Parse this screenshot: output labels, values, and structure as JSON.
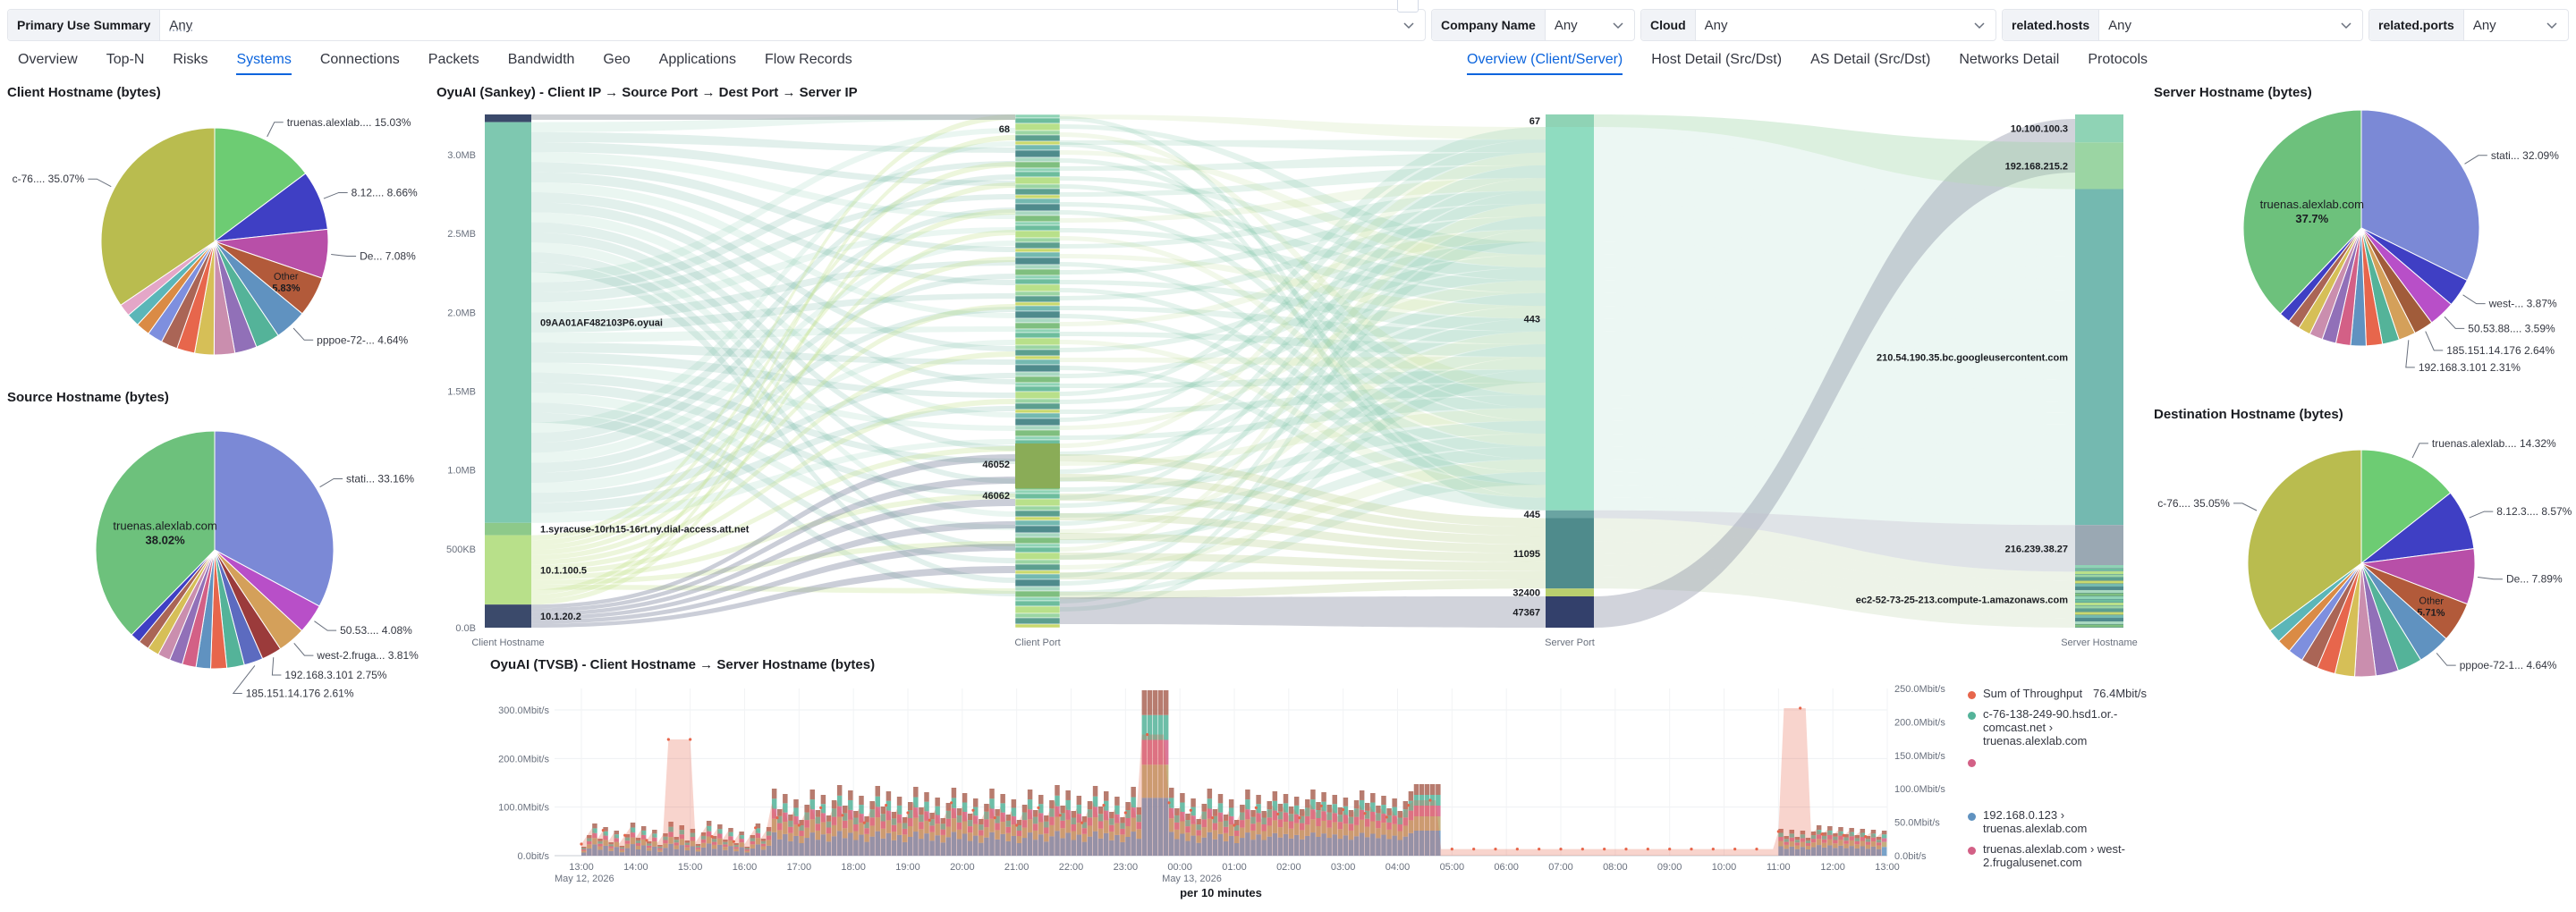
{
  "filters": {
    "primary": {
      "label": "Primary Use Summary",
      "value": "Any"
    },
    "company": {
      "label": "Company Name",
      "value": "Any"
    },
    "cloud": {
      "label": "Cloud",
      "value": "Any"
    },
    "hosts": {
      "label": "related.hosts",
      "value": "Any"
    },
    "ports": {
      "label": "related.ports",
      "value": "Any"
    }
  },
  "nav": {
    "tabs": [
      "Overview",
      "Top-N",
      "Risks",
      "Systems",
      "Connections",
      "Packets",
      "Bandwidth",
      "Geo",
      "Applications",
      "Flow Records"
    ],
    "active": "Systems",
    "subtabs": [
      "Overview (Client/Server)",
      "Host Detail (Src/Dst)",
      "AS Detail (Src/Dst)",
      "Networks Detail",
      "Protocols"
    ],
    "active_sub": "Overview (Client/Server)"
  },
  "panels": {
    "client_hostname": "Client Hostname (bytes)",
    "source_hostname": "Source Hostname (bytes)",
    "server_hostname": "Server Hostname (bytes)",
    "destination_hostname": "Destination Hostname (bytes)",
    "sankey": "OyuAI (Sankey) - Client IP → Source Port → Dest Port → Server IP",
    "tvsb": "OyuAI (TVSB) - Client Hostname → Server Hostname (bytes)"
  },
  "pies": {
    "client": {
      "slices": [
        {
          "label": "truenas.alexlab....",
          "pct": "15.03%",
          "value": 15.03,
          "color": "#6dcc73"
        },
        {
          "label": "8.12....",
          "pct": "8.66%",
          "value": 8.66,
          "color": "#3f3fc4"
        },
        {
          "label": "De...",
          "pct": "7.08%",
          "value": 7.08,
          "color": "#b84fa8"
        },
        {
          "label": "Other",
          "pct": "5.83%",
          "value": 5.83,
          "color": "#b25a3a"
        },
        {
          "label": "pppoe-72-...",
          "pct": "4.64%",
          "value": 4.64,
          "color": "#6092c0"
        },
        {
          "label": "",
          "pct": "",
          "value": 3.5,
          "color": "#54b399"
        },
        {
          "label": "",
          "pct": "",
          "value": 3.2,
          "color": "#9170b8"
        },
        {
          "label": "",
          "pct": "",
          "value": 3.0,
          "color": "#ca8eae"
        },
        {
          "label": "",
          "pct": "",
          "value": 2.8,
          "color": "#d6bf57"
        },
        {
          "label": "",
          "pct": "",
          "value": 2.6,
          "color": "#e7664c"
        },
        {
          "label": "",
          "pct": "",
          "value": 2.4,
          "color": "#aa6556"
        },
        {
          "label": "",
          "pct": "",
          "value": 2.2,
          "color": "#7e8fde"
        },
        {
          "label": "",
          "pct": "",
          "value": 2.0,
          "color": "#da8b45"
        },
        {
          "label": "",
          "pct": "",
          "value": 1.9,
          "color": "#5bb6b8"
        },
        {
          "label": "",
          "pct": "",
          "value": 1.8,
          "color": "#e4a6c7"
        },
        {
          "label": "c-76....",
          "pct": "35.07%",
          "value": 35.07,
          "color": "#b9bc4f"
        }
      ]
    },
    "source": {
      "slices": [
        {
          "label": "stati...",
          "pct": "33.16%",
          "value": 33.16,
          "color": "#7b89d6"
        },
        {
          "label": "50.53....",
          "pct": "4.08%",
          "value": 4.08,
          "color": "#b84fc8"
        },
        {
          "label": "west-2.fruga...",
          "pct": "3.81%",
          "value": 3.81,
          "color": "#d4a05a"
        },
        {
          "label": "192.168.3.101",
          "pct": "2.75%",
          "value": 2.75,
          "color": "#9b3b3b"
        },
        {
          "label": "185.151.14.176",
          "pct": "2.61%",
          "value": 2.61,
          "color": "#5c6bc0"
        },
        {
          "label": "",
          "pct": "",
          "value": 2.4,
          "color": "#54b399"
        },
        {
          "label": "",
          "pct": "",
          "value": 2.2,
          "color": "#e7664c"
        },
        {
          "label": "",
          "pct": "",
          "value": 2.0,
          "color": "#6092c0"
        },
        {
          "label": "",
          "pct": "",
          "value": 1.9,
          "color": "#d36086"
        },
        {
          "label": "",
          "pct": "",
          "value": 1.8,
          "color": "#9170b8"
        },
        {
          "label": "",
          "pct": "",
          "value": 1.7,
          "color": "#ca8eae"
        },
        {
          "label": "",
          "pct": "",
          "value": 1.6,
          "color": "#d6bf57"
        },
        {
          "label": "",
          "pct": "",
          "value": 1.5,
          "color": "#aa6556"
        },
        {
          "label": "",
          "pct": "",
          "value": 1.4,
          "color": "#3f3fc4"
        },
        {
          "label": "truenas.alexlab.com",
          "pct": "38.02%",
          "value": 38.02,
          "color": "#6dc17c"
        }
      ]
    },
    "server": {
      "slices": [
        {
          "label": "stati...",
          "pct": "32.09%",
          "value": 32.09,
          "color": "#7b89d6"
        },
        {
          "label": "west-...",
          "pct": "3.87%",
          "value": 3.87,
          "color": "#3f3fc4"
        },
        {
          "label": "50.53.88....",
          "pct": "3.59%",
          "value": 3.59,
          "color": "#b84fc8"
        },
        {
          "label": "185.151.14.176",
          "pct": "2.64%",
          "value": 2.64,
          "color": "#a15c3a"
        },
        {
          "label": "192.168.3.101",
          "pct": "2.31%",
          "value": 2.31,
          "color": "#d4a05a"
        },
        {
          "label": "",
          "pct": "",
          "value": 2.3,
          "color": "#54b399"
        },
        {
          "label": "",
          "pct": "",
          "value": 2.2,
          "color": "#e7664c"
        },
        {
          "label": "",
          "pct": "",
          "value": 2.1,
          "color": "#6092c0"
        },
        {
          "label": "",
          "pct": "",
          "value": 2.0,
          "color": "#d36086"
        },
        {
          "label": "",
          "pct": "",
          "value": 1.9,
          "color": "#9170b8"
        },
        {
          "label": "",
          "pct": "",
          "value": 1.8,
          "color": "#ca8eae"
        },
        {
          "label": "",
          "pct": "",
          "value": 1.7,
          "color": "#d6bf57"
        },
        {
          "label": "",
          "pct": "",
          "value": 1.6,
          "color": "#aa6556"
        },
        {
          "label": "",
          "pct": "",
          "value": 1.5,
          "color": "#3f3fc4"
        },
        {
          "label": "truenas.alexlab.com",
          "pct": "37.7%",
          "value": 37.7,
          "color": "#6dc17c"
        }
      ]
    },
    "destination": {
      "slices": [
        {
          "label": "truenas.alexlab....",
          "pct": "14.32%",
          "value": 14.32,
          "color": "#6dcc73"
        },
        {
          "label": "8.12.3....",
          "pct": "8.57%",
          "value": 8.57,
          "color": "#3f3fc4"
        },
        {
          "label": "De...",
          "pct": "7.89%",
          "value": 7.89,
          "color": "#b84fa8"
        },
        {
          "label": "Other",
          "pct": "5.71%",
          "value": 5.71,
          "color": "#b25a3a"
        },
        {
          "label": "pppoe-72-1...",
          "pct": "4.64%",
          "value": 4.64,
          "color": "#6092c0"
        },
        {
          "label": "",
          "pct": "",
          "value": 3.5,
          "color": "#54b399"
        },
        {
          "label": "",
          "pct": "",
          "value": 3.2,
          "color": "#9170b8"
        },
        {
          "label": "",
          "pct": "",
          "value": 3.0,
          "color": "#ca8eae"
        },
        {
          "label": "",
          "pct": "",
          "value": 2.8,
          "color": "#d6bf57"
        },
        {
          "label": "",
          "pct": "",
          "value": 2.6,
          "color": "#e7664c"
        },
        {
          "label": "",
          "pct": "",
          "value": 2.4,
          "color": "#aa6556"
        },
        {
          "label": "",
          "pct": "",
          "value": 2.2,
          "color": "#7e8fde"
        },
        {
          "label": "",
          "pct": "",
          "value": 2.0,
          "color": "#da8b45"
        },
        {
          "label": "",
          "pct": "",
          "value": 1.9,
          "color": "#5bb6b8"
        },
        {
          "label": "c-76....",
          "pct": "35.05%",
          "value": 35.05,
          "color": "#b9bc4f"
        }
      ]
    }
  },
  "sankey": {
    "yticks": [
      "3.0MB",
      "2.5MB",
      "2.0MB",
      "1.5MB",
      "1.0MB",
      "500KB",
      "0.0B"
    ],
    "column_labels": [
      "Client Hostname",
      "Client Port",
      "Server Port",
      "Server Hostname"
    ],
    "client_nodes": [
      {
        "label": "",
        "value": 0.05,
        "color": "#3b4a6b"
      },
      {
        "label": "09AA01AF482103P6.oyuai",
        "value": 2.6,
        "color": "#7ec8b0"
      },
      {
        "label": "1.syracuse-10rh15-16rt.ny.dial-access.att.net",
        "value": 0.08,
        "color": "#8dc98a"
      },
      {
        "label": "10.1.100.5",
        "value": 0.45,
        "color": "#b8e08a"
      },
      {
        "label": "10.1.20.2",
        "value": 0.15,
        "color": "#3b4a6b"
      }
    ],
    "client_port_labels": [
      {
        "label": "68",
        "value": 0.0
      },
      {
        "label": "46052",
        "value": 0.0
      },
      {
        "label": "46062",
        "value": 0.0
      }
    ],
    "server_port_nodes": [
      {
        "label": "67",
        "value": 0.08,
        "color": "#8fd3b5"
      },
      {
        "label": "443",
        "value": 2.45,
        "color": "#8fdcc0"
      },
      {
        "label": "445",
        "value": 0.05,
        "color": "#6aa4a2"
      },
      {
        "label": "11095",
        "value": 0.45,
        "color": "#4f8b8c"
      },
      {
        "label": "32400",
        "value": 0.05,
        "color": "#b9cf6e"
      },
      {
        "label": "47367",
        "value": 0.2,
        "color": "#33406b"
      }
    ],
    "server_nodes": [
      {
        "label": "10.100.100.3",
        "value": 0.15,
        "color": "#8fd3b5"
      },
      {
        "label": "192.168.215.2",
        "value": 0.25,
        "color": "#9bd5a3"
      },
      {
        "label": "210.54.190.35.bc.googleusercontent.com",
        "value": 1.8,
        "color": "#74b9b0"
      },
      {
        "label": "216.239.38.27",
        "value": 0.25,
        "color": "#9aa8b3"
      },
      {
        "label": "ec2-52-73-25-213.compute-1.amazonaws.com",
        "value": 0.3,
        "color": "#5a8e92"
      }
    ]
  },
  "tvsb": {
    "yticks_left": [
      "300.0Mbit/s",
      "200.0Mbit/s",
      "100.0Mbit/s",
      "0.0bit/s"
    ],
    "yticks_right": [
      "250.0Mbit/s",
      "200.0Mbit/s",
      "150.0Mbit/s",
      "100.0Mbit/s",
      "50.0Mbit/s",
      "0.0bit/s"
    ],
    "xticks": [
      "13:00",
      "14:00",
      "15:00",
      "16:00",
      "17:00",
      "18:00",
      "19:00",
      "20:00",
      "21:00",
      "22:00",
      "23:00",
      "00:00",
      "01:00",
      "02:00",
      "03:00",
      "04:00",
      "05:00",
      "06:00",
      "07:00",
      "08:00",
      "09:00",
      "10:00",
      "11:00",
      "12:00",
      "13:00"
    ],
    "date_left": "May 12, 2026",
    "date_mid": "May 13, 2026",
    "xlabel": "per 10 minutes",
    "legend": [
      {
        "label": "Sum of Throughput",
        "value": "76.4Mbit/s",
        "color": "#e7664c"
      },
      {
        "label": "c-76-138-249-90.hsd1.or.-comcast.net › truenas.alexlab.com",
        "value": "",
        "color": "#54b399"
      },
      {
        "label": "",
        "value": "",
        "color": "#d36086"
      },
      {
        "label": "192.168.0.123 › truenas.alexlab.com",
        "value": "",
        "color": "#6092c0"
      },
      {
        "label": "truenas.alexlab.com › west-2.frugalusenet.com",
        "value": "",
        "color": "#d36086"
      }
    ]
  }
}
